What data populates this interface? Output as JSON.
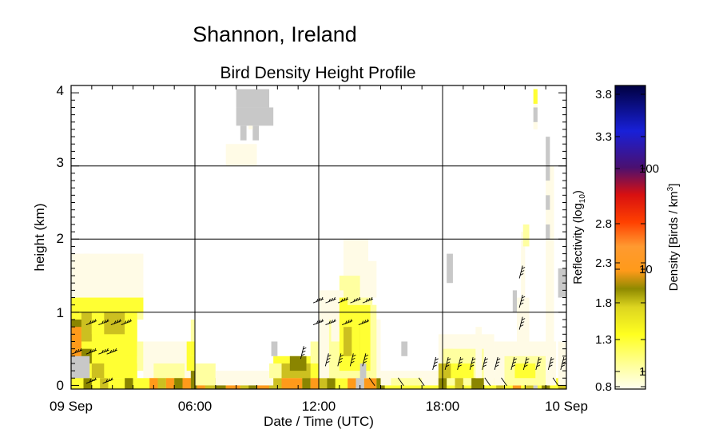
{
  "chart_data": {
    "type": "heatmap",
    "title": "Shannon, Ireland",
    "subtitle": "Bird Density Height Profile",
    "xlabel": "Date / Time (UTC)",
    "ylabel": "height (km)",
    "x_tick_labels": [
      "09 Sep",
      "06:00",
      "12:00",
      "18:00",
      "10 Sep"
    ],
    "x_range_hours": [
      0,
      24
    ],
    "y_ticks": [
      0,
      1,
      2,
      3,
      4
    ],
    "ylim": [
      -0.05,
      4.1
    ],
    "grid": true,
    "colorbar": {
      "label_left": "Reflectivity (log",
      "label_left_sub": "10",
      "label_left_close": ")",
      "label_right": "Density [Birds / km",
      "label_right_sup": "3",
      "label_right_close": "]",
      "left_ticks": [
        "0.8",
        "1",
        "1.3",
        "1.8",
        "2.3",
        "2.8",
        "3.3",
        "3.8"
      ],
      "right_ticks": [
        "1",
        "10",
        "100"
      ],
      "colors": [
        "#fffff0",
        "#ffff99",
        "#ffff20",
        "#ddd520",
        "#8f8a00",
        "#ff9a1a",
        "#ff4000",
        "#b00020",
        "#4a1070",
        "#1820d8",
        "#000040"
      ]
    },
    "colors": {
      "very_light": "#fffbe6",
      "light": "#ffffa0",
      "yellow": "#ffff33",
      "olive_light": "#ccc020",
      "olive": "#8a8500",
      "orange": "#ff9a1a",
      "no_data": "#c8c8c8"
    },
    "cells": [
      [
        0.0,
        0.0,
        0.4,
        "very_light"
      ],
      [
        0.4,
        0.0,
        0.8,
        "light"
      ],
      [
        0.8,
        0.0,
        1.2,
        "very_light"
      ],
      [
        1.2,
        0.0,
        1.6,
        "light"
      ],
      [
        0.0,
        0.4,
        3.0,
        "light"
      ],
      [
        0.0,
        0.4,
        0.1,
        "very_light"
      ],
      [
        0.0,
        0.0,
        0.1,
        "olive"
      ],
      [
        0.0,
        0.1,
        0.2,
        "olive"
      ],
      [
        0.0,
        0.2,
        0.3,
        "orange"
      ],
      [
        0.0,
        0.3,
        0.4,
        "olive"
      ],
      [
        0.0,
        0.4,
        0.5,
        "yellow"
      ],
      [
        0.0,
        0.5,
        0.6,
        "orange"
      ],
      [
        0.0,
        0.6,
        0.7,
        "orange"
      ],
      [
        0.0,
        0.7,
        0.8,
        "olive_light"
      ],
      [
        0.0,
        0.8,
        0.9,
        "olive"
      ],
      [
        0.0,
        0.9,
        1.0,
        "yellow"
      ],
      [
        0.0,
        1.0,
        1.2,
        "yellow"
      ],
      [
        0.0,
        1.2,
        1.4,
        "light"
      ],
      [
        0.0,
        1.4,
        1.8,
        "very_light"
      ]
    ],
    "series": [
      {
        "name": "Density",
        "values": [
          {
            "t": 0.0,
            "h": 0.1,
            "c": "no_data"
          },
          {
            "t": 0.2,
            "h": 0.1,
            "c": "no_data"
          },
          {
            "t": 0.4,
            "h": 0.1,
            "c": "no_data"
          },
          {
            "t": 0.0,
            "h": 0.3,
            "c": "no_data"
          },
          {
            "t": 0.2,
            "h": 0.3,
            "c": "no_data"
          },
          {
            "t": 0.4,
            "h": 0.3,
            "c": "no_data"
          }
        ]
      }
    ]
  }
}
